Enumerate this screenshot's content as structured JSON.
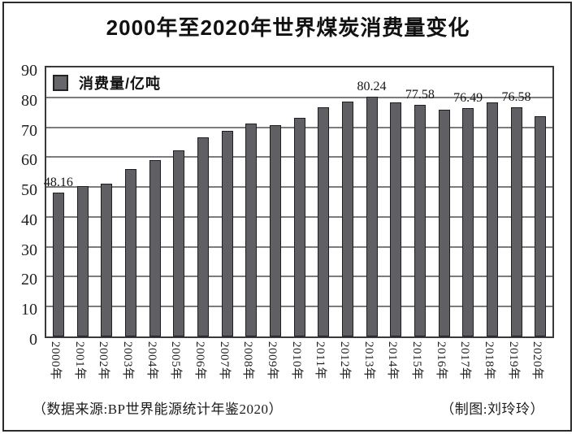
{
  "title": "2000年至2020年世界煤炭消费量变化",
  "legend": {
    "label": "消费量/亿吨",
    "swatch_color": "#67676b"
  },
  "footer": {
    "source": "（数据来源:BP世界能源统计年鉴2020）",
    "credit": "（制图:刘玲玲）"
  },
  "colors": {
    "bar_fill": "#606064",
    "bar_border": "#1e1e1e",
    "gridline": "#7c7c7c",
    "plot_border": "#3a3a3a"
  },
  "chart_data": {
    "type": "bar",
    "title": "2000年至2020年世界煤炭消费量变化",
    "legend": "消费量/亿吨",
    "unit": "亿吨",
    "xlabel": "",
    "ylabel": "消费量/亿吨",
    "ylim": [
      0,
      90
    ],
    "ytick_interval": 10,
    "grid": true,
    "legend_position": "top-left-inside",
    "ytick_labels": [
      "0",
      "10",
      "20",
      "30",
      "40",
      "50",
      "60",
      "70",
      "80",
      "90"
    ],
    "categories": [
      "2000年",
      "2001年",
      "2002年",
      "2003年",
      "2004年",
      "2005年",
      "2006年",
      "2007年",
      "2008年",
      "2009年",
      "2010年",
      "2011年",
      "2012年",
      "2013年",
      "2014年",
      "2015年",
      "2016年",
      "2017年",
      "2018年",
      "2019年",
      "2020年"
    ],
    "values": [
      48.16,
      50.2,
      51.2,
      56.1,
      59.1,
      62.4,
      66.7,
      68.7,
      71.2,
      70.8,
      73.2,
      76.6,
      78.6,
      80.24,
      78.2,
      77.58,
      75.8,
      76.49,
      78.3,
      76.58,
      73.8
    ],
    "point_labels": [
      "48.16",
      null,
      null,
      null,
      null,
      null,
      null,
      null,
      null,
      null,
      null,
      null,
      null,
      "80.24",
      null,
      "77.58",
      null,
      "76.49",
      null,
      "76.58",
      null
    ]
  }
}
